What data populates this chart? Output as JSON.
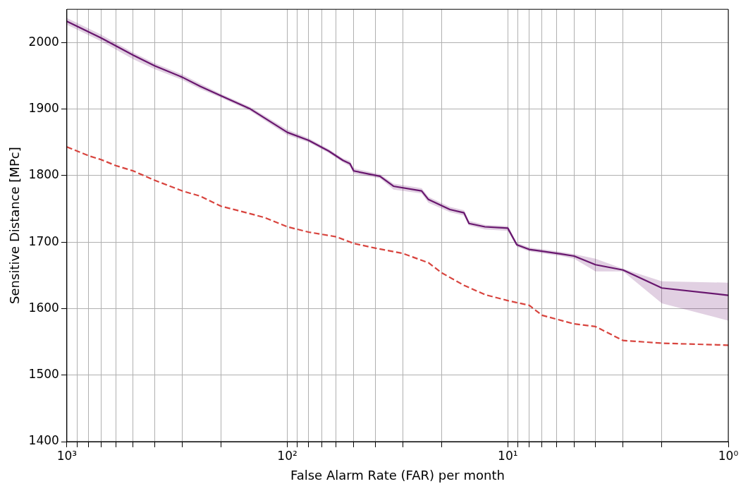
{
  "chart_data": {
    "type": "line",
    "xlabel": "False Alarm Rate (FAR) per month",
    "ylabel": "Sensitive Distance [MPc]",
    "log": "x",
    "grid": true,
    "legend": false,
    "marker": "none",
    "xlim": [
      1000,
      1
    ],
    "ylim": [
      1400,
      2050
    ],
    "xticks": [
      {
        "value": 1000,
        "label": "10³"
      },
      {
        "value": 900,
        "label": null
      },
      {
        "value": 800,
        "label": null
      },
      {
        "value": 700,
        "label": null
      },
      {
        "value": 600,
        "label": null
      },
      {
        "value": 500,
        "label": null
      },
      {
        "value": 400,
        "label": null
      },
      {
        "value": 300,
        "label": null
      },
      {
        "value": 200,
        "label": null
      },
      {
        "value": 100,
        "label": "10²"
      },
      {
        "value": 90,
        "label": null
      },
      {
        "value": 80,
        "label": null
      },
      {
        "value": 70,
        "label": null
      },
      {
        "value": 60,
        "label": null
      },
      {
        "value": 50,
        "label": null
      },
      {
        "value": 40,
        "label": null
      },
      {
        "value": 30,
        "label": null
      },
      {
        "value": 20,
        "label": null
      },
      {
        "value": 10,
        "label": "10¹"
      },
      {
        "value": 9,
        "label": null
      },
      {
        "value": 8,
        "label": null
      },
      {
        "value": 7,
        "label": null
      },
      {
        "value": 6,
        "label": null
      },
      {
        "value": 5,
        "label": null
      },
      {
        "value": 4,
        "label": null
      },
      {
        "value": 3,
        "label": null
      },
      {
        "value": 2,
        "label": null
      },
      {
        "value": 1,
        "label": "10⁰"
      }
    ],
    "yticks": [
      1400,
      1500,
      1600,
      1700,
      1800,
      1900,
      2000
    ],
    "series": [
      {
        "color": "#d8443e",
        "line_style": "dashed",
        "x": [
          1000,
          800,
          700,
          600,
          500,
          400,
          300,
          248,
          200,
          170,
          127,
          100,
          80,
          60,
          50,
          40,
          30,
          22.9,
          20,
          15.8,
          12.7,
          10,
          8,
          7,
          5,
          4,
          3,
          2,
          1
        ],
        "values": [
          1843,
          1830,
          1824,
          1815,
          1807,
          1793,
          1777,
          1769,
          1754,
          1748,
          1737,
          1723,
          1715,
          1708,
          1698,
          1691,
          1683,
          1669,
          1654,
          1635,
          1621,
          1612,
          1605,
          1590,
          1577,
          1573,
          1552,
          1548,
          1545
        ]
      },
      {
        "color": "#68166e",
        "line_style": "solid",
        "x": [
          1000,
          700,
          500,
          400,
          300,
          248,
          200,
          147,
          100,
          80,
          65,
          56,
          52,
          50,
          38,
          33,
          24.6,
          22.9,
          18.3,
          15.8,
          15,
          12.7,
          10,
          9.1,
          8,
          5.7,
          5,
          4,
          3,
          2,
          1
        ],
        "values": [
          2032,
          2007,
          1981,
          1965,
          1948,
          1934,
          1920,
          1900,
          1865,
          1853,
          1837,
          1823,
          1818,
          1807,
          1799,
          1784,
          1777,
          1764,
          1749,
          1744,
          1728,
          1723,
          1721,
          1696,
          1689,
          1682,
          1679,
          1666,
          1658,
          1631,
          1620
        ],
        "lower": [
          2027,
          2002,
          1975,
          1960,
          1944,
          1930,
          1917,
          1897,
          1861,
          1850,
          1834,
          1820,
          1814,
          1803,
          1796,
          1779,
          1773,
          1759,
          1745,
          1740,
          1725,
          1719,
          1717,
          1693,
          1686,
          1679,
          1675,
          1656,
          1656,
          1608,
          1582
        ],
        "upper": [
          2037,
          2012,
          1985,
          1969,
          1952,
          1938,
          1923,
          1903,
          1869,
          1856,
          1840,
          1826,
          1822,
          1811,
          1802,
          1788,
          1781,
          1768,
          1753,
          1748,
          1732,
          1726,
          1724,
          1699,
          1692,
          1685,
          1682,
          1675,
          1660,
          1641,
          1639
        ]
      }
    ]
  }
}
